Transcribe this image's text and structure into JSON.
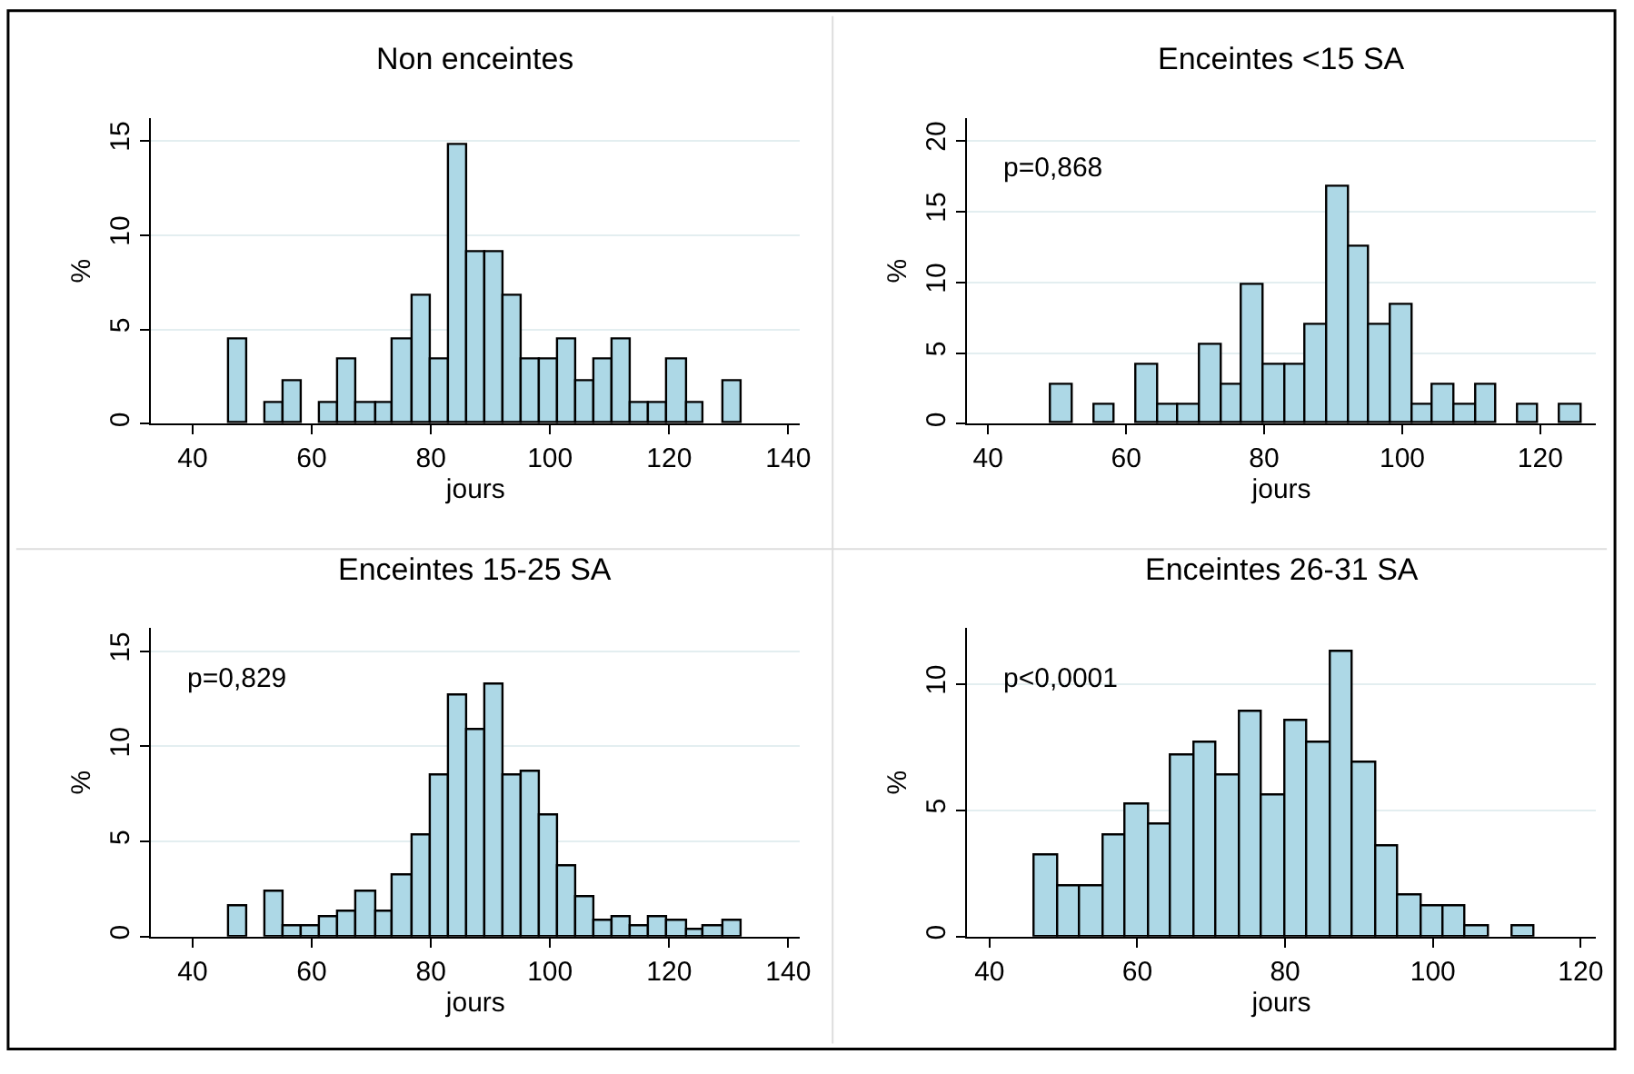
{
  "chart_data": [
    {
      "type": "histogram",
      "title": "Non enceintes",
      "xlabel": "jours",
      "ylabel": "%",
      "color": "#add8e6",
      "grid": "y",
      "bins": [
        46.1,
        49.2,
        52.2,
        55.3,
        58.4,
        61.5,
        64.5,
        67.6,
        70.7,
        73.7,
        76.8,
        79.9,
        82.9,
        86.0,
        89.1,
        92.2,
        95.2,
        98.3,
        101.4,
        104.4,
        107.5,
        110.6,
        113.6,
        116.7,
        119.8,
        122.9,
        125.9,
        129.0,
        132.1
      ],
      "values": [
        4.5,
        0,
        1.1,
        2.3,
        0,
        1.1,
        3.4,
        1.1,
        1.1,
        4.5,
        6.8,
        3.4,
        14.8,
        9.1,
        9.1,
        6.8,
        3.4,
        3.4,
        4.5,
        2.3,
        3.4,
        4.5,
        1.1,
        1.1,
        3.4,
        1.1,
        0,
        2.3
      ],
      "xlim": [
        33,
        142
      ],
      "xticks": [
        40,
        60,
        80,
        100,
        120,
        140
      ],
      "ylim": [
        0,
        16.2
      ],
      "yticks": [
        0,
        5,
        10,
        15
      ]
    },
    {
      "type": "histogram",
      "title": "Enceintes <15 SA",
      "xlabel": "jours",
      "ylabel": "%",
      "color": "#add8e6",
      "grid": "y",
      "annotations": [
        "p=0,868"
      ],
      "bins": [
        49.2,
        52.3,
        55.3,
        58.4,
        61.5,
        64.6,
        67.6,
        70.7,
        73.8,
        76.8,
        79.9,
        83.0,
        86.0,
        89.1,
        92.2,
        95.3,
        98.3,
        101.4,
        104.5,
        107.5,
        110.6,
        113.7,
        116.7,
        119.8,
        122.9,
        126.0
      ],
      "values": [
        2.8,
        0,
        1.4,
        0,
        4.2,
        1.4,
        1.4,
        5.6,
        2.8,
        9.8,
        4.2,
        4.2,
        7.0,
        16.7,
        12.5,
        7.0,
        8.4,
        1.4,
        2.8,
        1.4,
        2.8,
        0,
        1.4,
        0,
        1.4
      ],
      "xlim": [
        37,
        128
      ],
      "xticks": [
        40,
        60,
        80,
        100,
        120
      ],
      "ylim": [
        0,
        21.6
      ],
      "yticks": [
        0,
        5,
        10,
        15,
        20
      ]
    },
    {
      "type": "histogram",
      "title": "Enceintes 15-25 SA",
      "xlabel": "jours",
      "ylabel": "%",
      "color": "#add8e6",
      "grid": "y",
      "annotations": [
        "p=0,829"
      ],
      "bins": [
        46.1,
        49.2,
        52.2,
        55.3,
        58.4,
        61.5,
        64.5,
        67.6,
        70.7,
        73.7,
        76.8,
        79.9,
        82.9,
        86.0,
        89.1,
        92.2,
        95.2,
        98.3,
        101.4,
        104.4,
        107.5,
        110.6,
        113.6,
        116.7,
        119.8,
        122.9,
        125.9,
        129.0,
        132.1
      ],
      "values": [
        1.6,
        0,
        2.4,
        0.5,
        0.5,
        1.0,
        1.3,
        2.4,
        1.3,
        3.2,
        5.3,
        8.5,
        12.7,
        10.9,
        13.2,
        8.5,
        8.7,
        6.4,
        3.7,
        2.1,
        0.8,
        1.0,
        0.5,
        1.0,
        0.8,
        0.3,
        0.5,
        0.8
      ],
      "xlim": [
        33,
        142
      ],
      "xticks": [
        40,
        60,
        80,
        100,
        120,
        140
      ],
      "ylim": [
        0,
        16.2
      ],
      "yticks": [
        0,
        5,
        10,
        15
      ]
    },
    {
      "type": "histogram",
      "title": "Enceintes 26-31 SA",
      "xlabel": "jours",
      "ylabel": "%",
      "color": "#add8e6",
      "grid": "y",
      "annotations": [
        "p<0,0001"
      ],
      "bins": [
        46.2,
        49.3,
        52.3,
        55.4,
        58.5,
        61.6,
        64.6,
        67.7,
        70.8,
        73.8,
        76.9,
        80.0,
        83.0,
        86.1,
        89.2,
        92.3,
        95.3,
        98.4,
        101.5,
        104.5,
        107.6,
        110.7,
        113.7
      ],
      "values": [
        3.2,
        2.0,
        2.0,
        4.0,
        5.2,
        4.4,
        7.2,
        7.7,
        6.4,
        8.9,
        5.6,
        8.5,
        7.7,
        11.3,
        6.9,
        3.6,
        1.6,
        1.2,
        1.2,
        0.4,
        0,
        0.4
      ],
      "xlim": [
        37,
        122
      ],
      "xticks": [
        40,
        60,
        80,
        100,
        120
      ],
      "ylim": [
        0,
        12.2
      ],
      "yticks": [
        0,
        5,
        10
      ]
    }
  ]
}
